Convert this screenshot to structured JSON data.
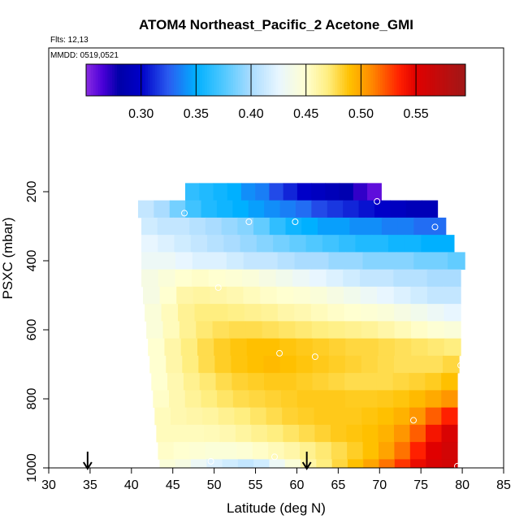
{
  "title": "ATOM4 Northeast_Pacific_2 Acetone_GMI",
  "flights_label": "Flts: 12,13",
  "mmdd_label": "MMDD: 0519,0521",
  "chart_data": {
    "type": "heatmap",
    "title": "ATOM4 Northeast_Pacific_2 Acetone_GMI",
    "xlabel": "Latitude (deg N)",
    "ylabel": "PSXC (mbar)",
    "xlim": [
      30,
      85
    ],
    "ylim": [
      1000,
      0
    ],
    "x_ticks": [
      30,
      35,
      40,
      45,
      50,
      55,
      60,
      65,
      70,
      75,
      80,
      85
    ],
    "y_ticks": [
      200,
      400,
      600,
      800,
      1000
    ],
    "grid": false,
    "colorbar": {
      "range": [
        0.25,
        0.595
      ],
      "ticks": [
        0.3,
        0.35,
        0.4,
        0.45,
        0.5,
        0.55
      ],
      "tick_labels": [
        "0.30",
        "0.35",
        "0.40",
        "0.45",
        "0.50",
        "0.55"
      ],
      "stops": [
        {
          "v": 0.25,
          "c": "#8a2be2"
        },
        {
          "v": 0.265,
          "c": "#4a00d8"
        },
        {
          "v": 0.28,
          "c": "#0000a8"
        },
        {
          "v": 0.3,
          "c": "#0000c8"
        },
        {
          "v": 0.325,
          "c": "#2a5cf0"
        },
        {
          "v": 0.35,
          "c": "#00b0ff"
        },
        {
          "v": 0.375,
          "c": "#50c8ff"
        },
        {
          "v": 0.4,
          "c": "#aadcff"
        },
        {
          "v": 0.425,
          "c": "#e8f6ff"
        },
        {
          "v": 0.45,
          "c": "#ffffd0"
        },
        {
          "v": 0.47,
          "c": "#ffee80"
        },
        {
          "v": 0.49,
          "c": "#ffc000"
        },
        {
          "v": 0.51,
          "c": "#ff8800"
        },
        {
          "v": 0.535,
          "c": "#ff2000"
        },
        {
          "v": 0.55,
          "c": "#e00000"
        },
        {
          "v": 0.595,
          "c": "#a01818"
        }
      ]
    },
    "pressure_bands": [
      {
        "p_top": 175,
        "p_bot": 225,
        "lat_start": 46.5,
        "lat_end": 70.2,
        "values": [
          0.365,
          0.36,
          0.355,
          0.35,
          0.34,
          0.335,
          0.32,
          0.31,
          0.3,
          0.295,
          0.29,
          0.285,
          0.27,
          0.26
        ]
      },
      {
        "p_top": 225,
        "p_bot": 275,
        "lat_start": 40.8,
        "lat_end": 77.0,
        "values": [
          0.41,
          0.4,
          0.385,
          0.37,
          0.36,
          0.355,
          0.35,
          0.345,
          0.34,
          0.335,
          0.33,
          0.32,
          0.315,
          0.31,
          0.305,
          0.3,
          0.295,
          0.29,
          0.29
        ]
      },
      {
        "p_top": 275,
        "p_bot": 325,
        "lat_start": 41.2,
        "lat_end": 78.0,
        "values": [
          0.415,
          0.41,
          0.41,
          0.405,
          0.4,
          0.395,
          0.39,
          0.38,
          0.365,
          0.355,
          0.35,
          0.345,
          0.345,
          0.34,
          0.34,
          0.335,
          0.335,
          0.33,
          0.33
        ]
      },
      {
        "p_top": 325,
        "p_bot": 375,
        "lat_start": 41.2,
        "lat_end": 79.0,
        "values": [
          0.425,
          0.42,
          0.415,
          0.41,
          0.405,
          0.4,
          0.395,
          0.39,
          0.385,
          0.38,
          0.375,
          0.37,
          0.365,
          0.36,
          0.36,
          0.355,
          0.355,
          0.35,
          0.35
        ]
      },
      {
        "p_top": 375,
        "p_bot": 425,
        "lat_start": 41.2,
        "lat_end": 80.3,
        "values": [
          0.43,
          0.43,
          0.425,
          0.42,
          0.42,
          0.415,
          0.41,
          0.41,
          0.405,
          0.4,
          0.4,
          0.395,
          0.395,
          0.39,
          0.39,
          0.39,
          0.385,
          0.385,
          0.38
        ]
      },
      {
        "p_top": 425,
        "p_bot": 475,
        "lat_start": 41.2,
        "lat_end": 79.8,
        "values": [
          0.44,
          0.445,
          0.45,
          0.452,
          0.45,
          0.448,
          0.445,
          0.44,
          0.435,
          0.43,
          0.425,
          0.42,
          0.415,
          0.41,
          0.41,
          0.405,
          0.405,
          0.4,
          0.4
        ]
      },
      {
        "p_top": 475,
        "p_bot": 525,
        "lat_start": 41.4,
        "lat_end": 79.8,
        "values": [
          0.44,
          0.45,
          0.46,
          0.462,
          0.46,
          0.458,
          0.455,
          0.452,
          0.45,
          0.448,
          0.445,
          0.44,
          0.435,
          0.43,
          0.425,
          0.42,
          0.415,
          0.41,
          0.41
        ]
      },
      {
        "p_top": 525,
        "p_bot": 575,
        "lat_start": 41.6,
        "lat_end": 79.8,
        "values": [
          0.445,
          0.455,
          0.465,
          0.47,
          0.47,
          0.468,
          0.466,
          0.464,
          0.46,
          0.458,
          0.455,
          0.452,
          0.45,
          0.448,
          0.445,
          0.44,
          0.435,
          0.43,
          0.425
        ]
      },
      {
        "p_top": 575,
        "p_bot": 625,
        "lat_start": 41.8,
        "lat_end": 79.8,
        "values": [
          0.445,
          0.455,
          0.465,
          0.472,
          0.476,
          0.478,
          0.478,
          0.476,
          0.474,
          0.472,
          0.47,
          0.468,
          0.466,
          0.464,
          0.46,
          0.456,
          0.452,
          0.448,
          0.445
        ]
      },
      {
        "p_top": 625,
        "p_bot": 675,
        "lat_start": 42.0,
        "lat_end": 79.8,
        "values": [
          0.45,
          0.46,
          0.47,
          0.478,
          0.484,
          0.488,
          0.49,
          0.49,
          0.488,
          0.486,
          0.484,
          0.482,
          0.48,
          0.48,
          0.478,
          0.476,
          0.474,
          0.472,
          0.47
        ]
      },
      {
        "p_top": 675,
        "p_bot": 725,
        "lat_start": 42.2,
        "lat_end": 79.6,
        "values": [
          0.45,
          0.46,
          0.47,
          0.478,
          0.484,
          0.488,
          0.49,
          0.492,
          0.49,
          0.488,
          0.486,
          0.484,
          0.482,
          0.48,
          0.478,
          0.476,
          0.476,
          0.476,
          0.48
        ]
      },
      {
        "p_top": 725,
        "p_bot": 775,
        "lat_start": 42.4,
        "lat_end": 79.4,
        "values": [
          0.45,
          0.458,
          0.466,
          0.472,
          0.478,
          0.482,
          0.484,
          0.486,
          0.486,
          0.484,
          0.482,
          0.48,
          0.478,
          0.478,
          0.478,
          0.48,
          0.482,
          0.485,
          0.49
        ]
      },
      {
        "p_top": 775,
        "p_bot": 825,
        "lat_start": 42.6,
        "lat_end": 79.4,
        "values": [
          0.452,
          0.458,
          0.464,
          0.47,
          0.474,
          0.478,
          0.48,
          0.482,
          0.484,
          0.486,
          0.486,
          0.486,
          0.485,
          0.485,
          0.486,
          0.488,
          0.492,
          0.498,
          0.505
        ]
      },
      {
        "p_top": 825,
        "p_bot": 875,
        "lat_start": 42.8,
        "lat_end": 79.4,
        "values": [
          0.455,
          0.458,
          0.46,
          0.462,
          0.466,
          0.47,
          0.474,
          0.478,
          0.482,
          0.484,
          0.486,
          0.486,
          0.486,
          0.488,
          0.49,
          0.495,
          0.505,
          0.52,
          0.535
        ]
      },
      {
        "p_top": 875,
        "p_bot": 925,
        "lat_start": 43.0,
        "lat_end": 79.4,
        "values": [
          0.455,
          0.455,
          0.455,
          0.456,
          0.458,
          0.462,
          0.466,
          0.47,
          0.474,
          0.478,
          0.482,
          0.486,
          0.488,
          0.49,
          0.495,
          0.505,
          0.52,
          0.54,
          0.555
        ]
      },
      {
        "p_top": 925,
        "p_bot": 975,
        "lat_start": 43.2,
        "lat_end": 79.4,
        "values": [
          0.452,
          0.45,
          0.448,
          0.446,
          0.446,
          0.448,
          0.452,
          0.456,
          0.46,
          0.466,
          0.472,
          0.478,
          0.484,
          0.49,
          0.5,
          0.515,
          0.535,
          0.55,
          0.56
        ]
      },
      {
        "p_top": 975,
        "p_bot": 1000,
        "lat_start": 43.4,
        "lat_end": 79.4,
        "values": [
          0.445,
          0.44,
          0.43,
          0.42,
          0.415,
          0.41,
          0.415,
          0.43,
          0.445,
          0.46,
          0.47,
          0.48,
          0.49,
          0.5,
          0.515,
          0.53,
          0.545,
          0.555,
          0.56
        ]
      }
    ],
    "sample_points": [
      {
        "lat": 69.7,
        "p": 228
      },
      {
        "lat": 46.4,
        "p": 262
      },
      {
        "lat": 54.2,
        "p": 287
      },
      {
        "lat": 59.8,
        "p": 287
      },
      {
        "lat": 76.7,
        "p": 302
      },
      {
        "lat": 80.3,
        "p": 455
      },
      {
        "lat": 50.5,
        "p": 478
      },
      {
        "lat": 57.9,
        "p": 668
      },
      {
        "lat": 62.2,
        "p": 678
      },
      {
        "lat": 79.8,
        "p": 703
      },
      {
        "lat": 74.1,
        "p": 862
      },
      {
        "lat": 57.3,
        "p": 968
      },
      {
        "lat": 49.6,
        "p": 981
      },
      {
        "lat": 79.4,
        "p": 995
      }
    ],
    "arrows": [
      {
        "lat": 34.7
      },
      {
        "lat": 61.2
      }
    ]
  }
}
